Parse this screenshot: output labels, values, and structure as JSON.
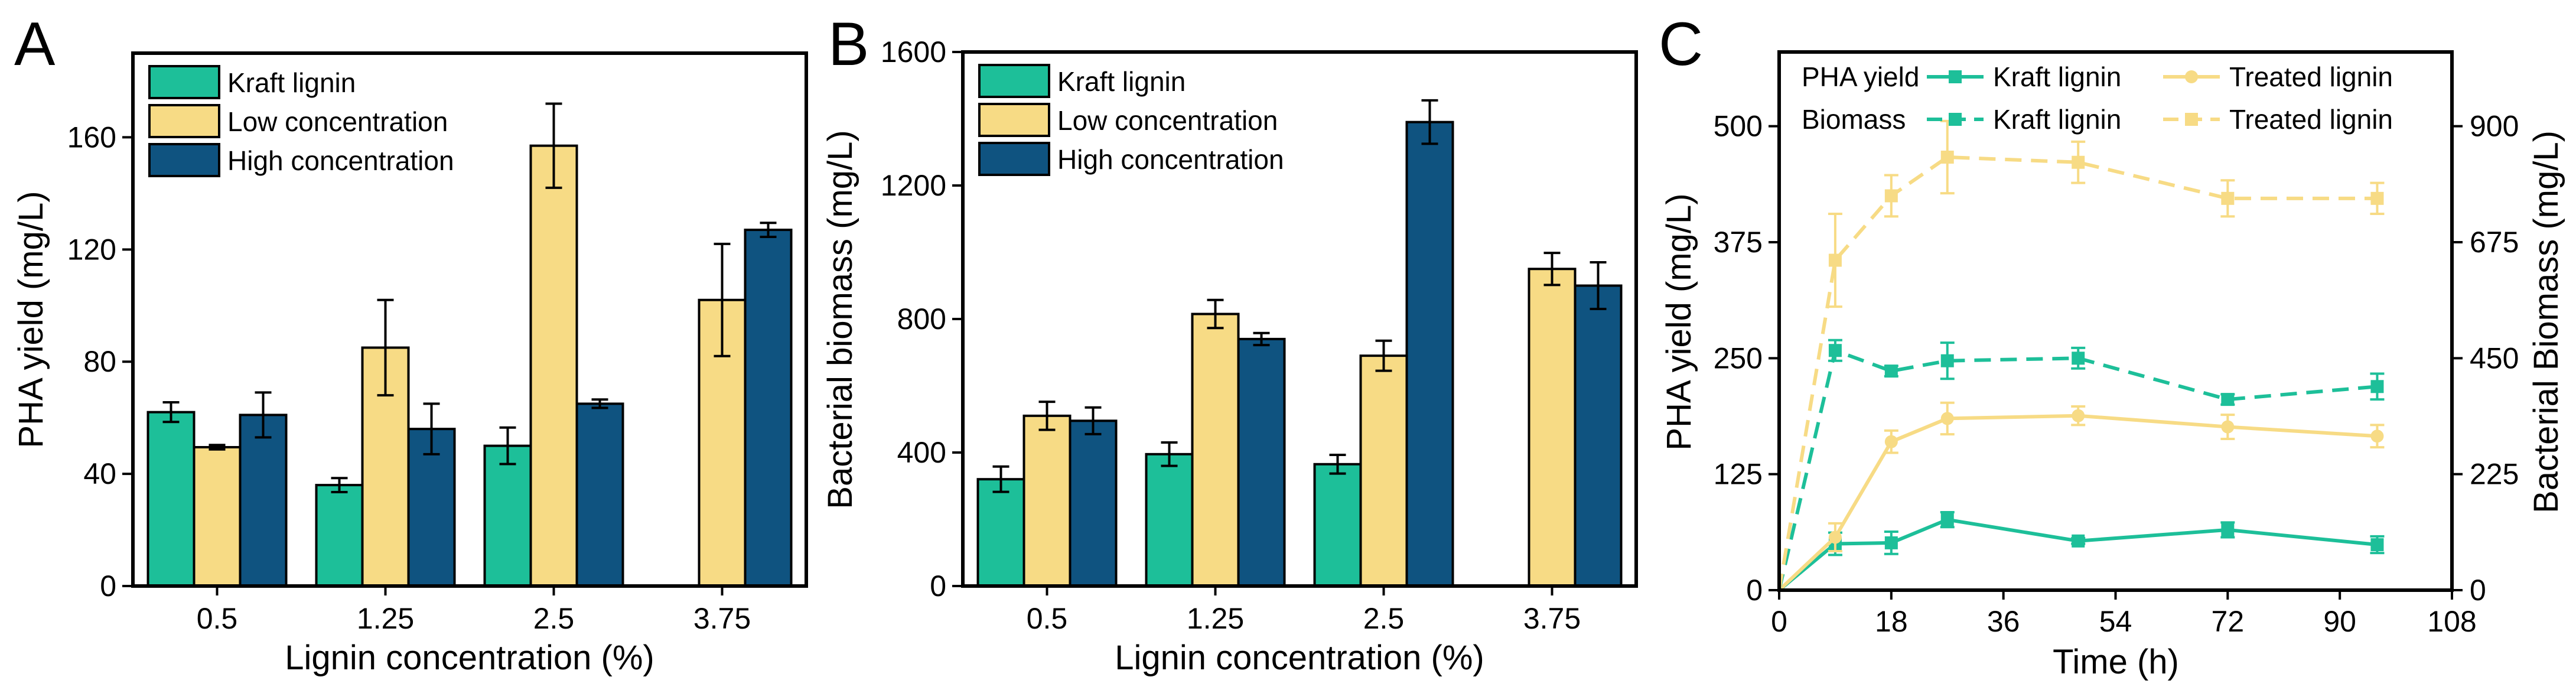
{
  "colors": {
    "kraft": "#1dbf99",
    "low": "#f7db85",
    "high": "#0f5380",
    "treated": "#f7db85"
  },
  "chart_data": [
    {
      "panel": "A",
      "type": "bar",
      "xlabel": "Lignin concentration (%)",
      "ylabel": "PHA yield (mg/L)",
      "ylim": [
        0,
        190
      ],
      "yticks": [
        0,
        40,
        80,
        120,
        160
      ],
      "categories": [
        "0.5",
        "1.25",
        "2.5",
        "3.75"
      ],
      "series": [
        {
          "name": "Kraft lignin",
          "color_key": "kraft",
          "values": [
            62,
            36,
            50,
            null
          ],
          "errors": [
            3.5,
            2.5,
            6.5,
            null
          ]
        },
        {
          "name": "Low concentration",
          "color_key": "low",
          "values": [
            49.5,
            85,
            157,
            102
          ],
          "errors": [
            0.8,
            17,
            15,
            20
          ]
        },
        {
          "name": "High concentration",
          "color_key": "high",
          "values": [
            61,
            56,
            65,
            127
          ],
          "errors": [
            8,
            9,
            1.5,
            2.5
          ]
        }
      ]
    },
    {
      "panel": "B",
      "type": "bar",
      "xlabel": "Lignin concentration (%)",
      "ylabel": "Bacterial biomass (mg/L)",
      "ylim": [
        0,
        1600
      ],
      "yticks": [
        0,
        400,
        800,
        1200,
        1600
      ],
      "categories": [
        "0.5",
        "1.25",
        "2.5",
        "3.75"
      ],
      "series": [
        {
          "name": "Kraft lignin",
          "color_key": "kraft",
          "values": [
            320,
            395,
            365,
            null
          ],
          "errors": [
            38,
            35,
            28,
            null
          ]
        },
        {
          "name": "Low concentration",
          "color_key": "low",
          "values": [
            510,
            815,
            690,
            950
          ],
          "errors": [
            42,
            42,
            45,
            48
          ]
        },
        {
          "name": "High concentration",
          "color_key": "high",
          "values": [
            495,
            740,
            null,
            900
          ],
          "errors": [
            40,
            18,
            null,
            70
          ]
        },
        {
          "name": "High concentration (2.5)",
          "color_key": "high",
          "values": [
            null,
            null,
            1390,
            null
          ],
          "errors": [
            null,
            null,
            65,
            null
          ]
        }
      ]
    },
    {
      "panel": "C",
      "type": "line",
      "xlabel": "Time (h)",
      "ylabel": "PHA yield (mg/L)",
      "y2label": "Bacterial Biomass (mg/L)",
      "xlim": [
        0,
        108
      ],
      "xticks": [
        0,
        18,
        36,
        54,
        72,
        90,
        108
      ],
      "ylim": [
        0,
        580
      ],
      "yticks": [
        0,
        125,
        250,
        375,
        500
      ],
      "y2lim": [
        0,
        1044
      ],
      "y2ticks": [
        0,
        225,
        450,
        675,
        900
      ],
      "x": [
        0,
        9,
        18,
        27,
        48,
        72,
        96
      ],
      "series": [
        {
          "name": "Kraft lignin",
          "group": "PHA yield",
          "color_key": "kraft",
          "dashed": false,
          "marker": "square",
          "axis": "left",
          "values": [
            0,
            50,
            51,
            76,
            53,
            65,
            49
          ],
          "errors": [
            0,
            12,
            12,
            8,
            3,
            8,
            9
          ]
        },
        {
          "name": "Treated lignin",
          "group": "PHA yield",
          "color_key": "treated",
          "dashed": false,
          "marker": "circle",
          "axis": "left",
          "values": [
            0,
            57,
            160,
            185,
            188,
            176,
            166
          ],
          "errors": [
            0,
            15,
            12,
            17,
            10,
            13,
            12
          ]
        },
        {
          "name": "Kraft lignin",
          "group": "Biomass",
          "color_key": "kraft",
          "dashed": true,
          "marker": "square",
          "axis": "right",
          "values": [
            0,
            465,
            425,
            445,
            450,
            370,
            395
          ],
          "errors": [
            0,
            20,
            10,
            35,
            20,
            10,
            25
          ]
        },
        {
          "name": "Treated lignin",
          "group": "Biomass",
          "color_key": "treated",
          "dashed": true,
          "marker": "square",
          "axis": "right",
          "values": [
            0,
            640,
            765,
            840,
            830,
            760,
            760
          ],
          "errors": [
            0,
            90,
            40,
            70,
            40,
            35,
            30
          ]
        }
      ]
    }
  ],
  "panels": {
    "A": {
      "letter": "A",
      "legend": [
        "Kraft lignin",
        "Low concentration",
        "High concentration"
      ]
    },
    "B": {
      "letter": "B",
      "legend": [
        "Kraft lignin",
        "Low concentration",
        "High concentration"
      ]
    },
    "C": {
      "letter": "C",
      "legend_groups": [
        "PHA yield",
        "Biomass"
      ],
      "legend_series": [
        "Kraft lignin",
        "Treated lignin",
        "Kraft lignin",
        "Treated lignin"
      ]
    }
  }
}
